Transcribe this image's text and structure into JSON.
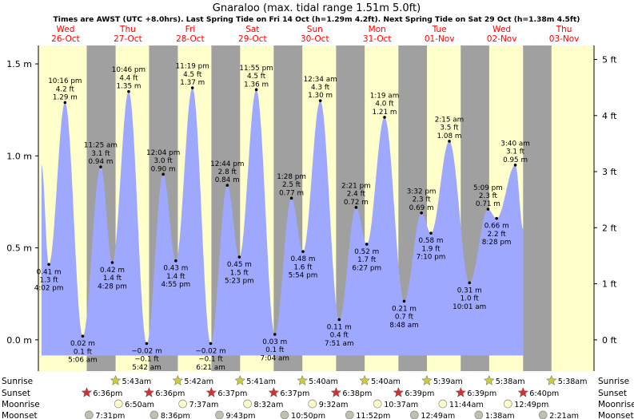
{
  "chart_data": {
    "type": "area",
    "title": "Gnaraloo (max. tidal range 1.51m 5.0ft)",
    "subtitle": "Times are AWST (UTC +8.0hrs). Last Spring Tide on Fri 14 Oct (h=1.29m 4.2ft). Next Spring Tide on Sat 29 Oct (h=1.38m 4.5ft)",
    "ylim": [
      -0.17,
      1.6
    ],
    "xlim": [
      0,
      8.5
    ],
    "y_ticks_left": [
      "1.5 m",
      "1.0 m",
      "0.5 m",
      "0.0 m"
    ],
    "y_tick_values_left": [
      1.5,
      1.0,
      0.5,
      0.0
    ],
    "y_ticks_right": [
      "5 ft",
      "4 ft",
      "3 ft",
      "2 ft",
      "1 ft",
      "0 ft"
    ],
    "y_tick_values_right": [
      1.524,
      1.2192,
      0.9144,
      0.6096,
      0.3048,
      0.0
    ],
    "days": [
      {
        "dow": "Wed",
        "date": "26-Oct"
      },
      {
        "dow": "Thu",
        "date": "27-Oct"
      },
      {
        "dow": "Fri",
        "date": "28-Oct"
      },
      {
        "dow": "Sat",
        "date": "29-Oct"
      },
      {
        "dow": "Sun",
        "date": "30-Oct"
      },
      {
        "dow": "Mon",
        "date": "31-Oct"
      },
      {
        "dow": "Tue",
        "date": "01-Nov"
      },
      {
        "dow": "Wed",
        "date": "02-Nov"
      },
      {
        "dow": "Thu",
        "date": "03-Nov"
      }
    ],
    "nights": [
      {
        "start": 0.776,
        "end": 1.239
      },
      {
        "start": 1.776,
        "end": 2.238
      },
      {
        "start": 2.776,
        "end": 3.237
      },
      {
        "start": 3.776,
        "end": 4.236
      },
      {
        "start": 4.777,
        "end": 5.236
      },
      {
        "start": 5.777,
        "end": 6.235
      },
      {
        "start": 6.777,
        "end": 7.234
      },
      {
        "start": 7.778,
        "end": 8.233
      }
    ],
    "series": [
      {
        "points": [
          {
            "x": 0.05,
            "y": 0.95,
            "text": [
              "",
              "",
              ""
            ],
            "kind": "high"
          },
          {
            "x": 0.168,
            "y": 0.41,
            "text": [
              "0.41 m",
              "1.3 ft",
              "4:02 pm"
            ],
            "kind": "low"
          },
          {
            "x": 0.428,
            "y": 1.29,
            "text": [
              "10:16 pm",
              "4.2 ft",
              "1.29 m"
            ],
            "kind": "high"
          },
          {
            "x": 0.712,
            "y": 0.02,
            "text": [
              "0.02 m",
              "0.1 ft",
              "5:06 am"
            ],
            "kind": "low"
          },
          {
            "x": 1.0,
            "y": 0.94,
            "text": [
              "11:25 am",
              "3.1 ft",
              "0.94 m"
            ],
            "kind": "high"
          },
          {
            "x": 1.186,
            "y": 0.42,
            "text": [
              "0.42 m",
              "1.4 ft",
              "4:28 pm"
            ],
            "kind": "low"
          },
          {
            "x": 1.449,
            "y": 1.35,
            "text": [
              "10:46 pm",
              "4.4 ft",
              "1.35 m"
            ],
            "kind": "high"
          },
          {
            "x": 1.738,
            "y": -0.02,
            "text": [
              "−0.02 m",
              "−0.1 ft",
              "5:42 am"
            ],
            "kind": "low"
          },
          {
            "x": 2.003,
            "y": 0.9,
            "text": [
              "12:04 pm",
              "3.0 ft",
              "0.90 m"
            ],
            "kind": "high"
          },
          {
            "x": 2.205,
            "y": 0.43,
            "text": [
              "0.43 m",
              "1.4 ft",
              "4:55 pm"
            ],
            "kind": "low"
          },
          {
            "x": 2.472,
            "y": 1.37,
            "text": [
              "11:19 pm",
              "4.5 ft",
              "1.37 m"
            ],
            "kind": "high"
          },
          {
            "x": 2.765,
            "y": -0.02,
            "text": [
              "−0.02 m",
              "−0.1 ft",
              "6:21 am"
            ],
            "kind": "low"
          },
          {
            "x": 3.031,
            "y": 0.84,
            "text": [
              "12:44 pm",
              "2.8 ft",
              "0.84 m"
            ],
            "kind": "high"
          },
          {
            "x": 3.224,
            "y": 0.45,
            "text": [
              "0.45 m",
              "1.5 ft",
              "5:23 pm"
            ],
            "kind": "low"
          },
          {
            "x": 3.497,
            "y": 1.36,
            "text": [
              "11:55 pm",
              "4.5 ft",
              "1.36 m"
            ],
            "kind": "high"
          },
          {
            "x": 3.794,
            "y": 0.03,
            "text": [
              "0.03 m",
              "0.1 ft",
              "7:04 am"
            ],
            "kind": "low"
          },
          {
            "x": 4.061,
            "y": 0.77,
            "text": [
              "1:28 pm",
              "2.5 ft",
              "0.77 m"
            ],
            "kind": "high"
          },
          {
            "x": 4.246,
            "y": 0.48,
            "text": [
              "0.48 m",
              "1.6 ft",
              "5:54 pm"
            ],
            "kind": "low"
          },
          {
            "x": 4.524,
            "y": 1.3,
            "text": [
              "12:34 am",
              "4.3 ft",
              "1.30 m"
            ],
            "kind": "high"
          },
          {
            "x": 4.827,
            "y": 0.11,
            "text": [
              "0.11 m",
              "0.4 ft",
              "7:51 am"
            ],
            "kind": "low"
          },
          {
            "x": 5.098,
            "y": 0.72,
            "text": [
              "2:21 pm",
              "2.4 ft",
              "0.72 m"
            ],
            "kind": "high"
          },
          {
            "x": 5.269,
            "y": 0.52,
            "text": [
              "0.52 m",
              "1.7 ft",
              "6:27 pm"
            ],
            "kind": "low"
          },
          {
            "x": 5.555,
            "y": 1.21,
            "text": [
              "1:19 am",
              "4.0 ft",
              "1.21 m"
            ],
            "kind": "high"
          },
          {
            "x": 5.869,
            "y": 0.21,
            "text": [
              "0.21 m",
              "0.7 ft",
              "8:48 am"
            ],
            "kind": "low"
          },
          {
            "x": 6.147,
            "y": 0.69,
            "text": [
              "3:32 pm",
              "2.3 ft",
              "0.69 m"
            ],
            "kind": "high"
          },
          {
            "x": 6.299,
            "y": 0.58,
            "text": [
              "0.58 m",
              "1.9 ft",
              "7:10 pm"
            ],
            "kind": "low"
          },
          {
            "x": 6.594,
            "y": 1.08,
            "text": [
              "2:15 am",
              "3.5 ft",
              "1.08 m"
            ],
            "kind": "high"
          },
          {
            "x": 6.917,
            "y": 0.31,
            "text": [
              "0.31 m",
              "1.0 ft",
              "10:01 am"
            ],
            "kind": "low"
          },
          {
            "x": 7.215,
            "y": 0.71,
            "text": [
              "5:09 pm",
              "2.3 ft",
              "0.71 m"
            ],
            "kind": "high"
          },
          {
            "x": 7.353,
            "y": 0.66,
            "text": [
              "0.66 m",
              "2.2 ft",
              "8:28 pm"
            ],
            "kind": "low"
          },
          {
            "x": 7.653,
            "y": 0.95,
            "text": [
              "3:40 am",
              "3.1 ft",
              "0.95 m"
            ],
            "kind": "high"
          },
          {
            "x": 7.78,
            "y": 0.6,
            "text": [
              "",
              "",
              ""
            ],
            "kind": "low"
          }
        ]
      }
    ],
    "rows": [
      {
        "label": "Sunrise",
        "kind": "sunrise",
        "events": [
          {
            "x": 1.238,
            "time": "5:43am"
          },
          {
            "x": 2.237,
            "time": "5:42am"
          },
          {
            "x": 3.236,
            "time": "5:41am"
          },
          {
            "x": 4.235,
            "time": "5:40am"
          },
          {
            "x": 5.235,
            "time": "5:40am"
          },
          {
            "x": 6.234,
            "time": "5:39am"
          },
          {
            "x": 7.233,
            "time": "5:38am"
          },
          {
            "x": 8.233,
            "time": "5:38am"
          }
        ]
      },
      {
        "label": "Sunset",
        "kind": "sunset",
        "events": [
          {
            "x": 0.775,
            "time": "6:36pm"
          },
          {
            "x": 1.775,
            "time": "6:36pm"
          },
          {
            "x": 2.776,
            "time": "6:37pm"
          },
          {
            "x": 3.776,
            "time": "6:37pm"
          },
          {
            "x": 4.777,
            "time": "6:38pm"
          },
          {
            "x": 5.777,
            "time": "6:39pm"
          },
          {
            "x": 6.777,
            "time": "6:39pm"
          },
          {
            "x": 7.778,
            "time": "6:40pm"
          }
        ]
      },
      {
        "label": "Moonrise",
        "kind": "moonrise",
        "events": [
          {
            "x": 1.285,
            "time": "6:50am"
          },
          {
            "x": 2.317,
            "time": "7:37am"
          },
          {
            "x": 3.355,
            "time": "8:32am"
          },
          {
            "x": 4.397,
            "time": "9:32am"
          },
          {
            "x": 5.442,
            "time": "10:37am"
          },
          {
            "x": 6.489,
            "time": "11:44am"
          },
          {
            "x": 7.534,
            "time": "12:49pm"
          }
        ]
      },
      {
        "label": "Moonset",
        "kind": "moonset",
        "events": [
          {
            "x": 0.813,
            "time": "7:31pm"
          },
          {
            "x": 1.858,
            "time": "8:36pm"
          },
          {
            "x": 2.905,
            "time": "9:43pm"
          },
          {
            "x": 3.951,
            "time": "10:50pm"
          },
          {
            "x": 4.994,
            "time": "11:52pm"
          },
          {
            "x": 6.034,
            "time": "12:49am"
          },
          {
            "x": 7.067,
            "time": "1:38am"
          },
          {
            "x": 8.097,
            "time": "2:21am"
          }
        ]
      }
    ],
    "colors": {
      "day": "#ffffcc",
      "night": "#a0a0a0",
      "water": "#9fa8ff",
      "ylabel": "#000000",
      "date": "#ff0000",
      "sunrise": "#cccc33",
      "sunset": "#cc3333",
      "moonrise": "#ffffcc",
      "moonset": "#c0c0b0"
    },
    "grid": false
  }
}
